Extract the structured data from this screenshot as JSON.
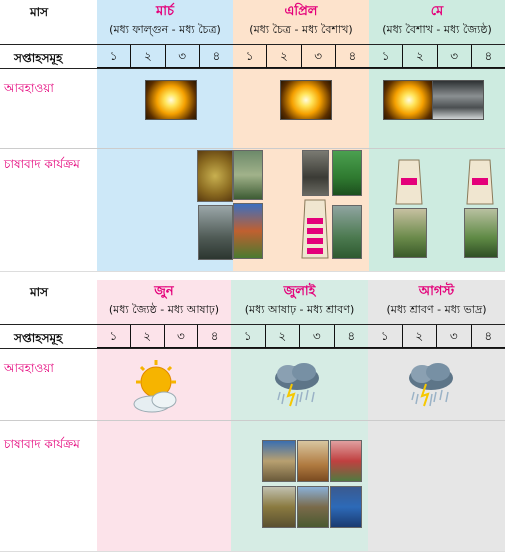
{
  "label_month": "মাস",
  "label_weeks": "সপ্তাহসমূহ",
  "label_weather": "আবহাওয়া",
  "label_activity": "চাষাবাদ কার্যক্রম",
  "week_labels": [
    "১",
    "২",
    "৩",
    "৪"
  ],
  "table1": {
    "months": [
      {
        "name": "মার্চ",
        "sub": "(মধ্য ফাল্গুন - মধ্য চৈত্র)",
        "color": "#cde8f8"
      },
      {
        "name": "এপ্রিল",
        "sub": "(মধ্য চৈত্র - মধ্য বৈশাখ)",
        "color": "#fde3cc"
      },
      {
        "name": "মে",
        "sub": "(মধ্য বৈশাখ - মধ্য জ্যৈষ্ঠ)",
        "color": "#cdebe0"
      }
    ]
  },
  "table2": {
    "months": [
      {
        "name": "জুন",
        "sub": "(মধ্য জ্যৈষ্ঠ - মধ্য আষাঢ়)",
        "color": "#fce3ea"
      },
      {
        "name": "জুলাই",
        "sub": "(মধ্য আষাঢ় - মধ্য শ্রাবণ)",
        "color": "#d6ece4"
      },
      {
        "name": "আগস্ট",
        "sub": "(মধ্য শ্রাবণ - মধ্য ভাদ্র)",
        "color": "#e6e6e6"
      }
    ]
  },
  "icons": {
    "sun": "sun-photo",
    "dark_cloud": "dark-cloud-photo",
    "sun_cloud": "sun-behind-cloud-icon",
    "rain_cloud": "storm-rain-cloud-icon"
  }
}
